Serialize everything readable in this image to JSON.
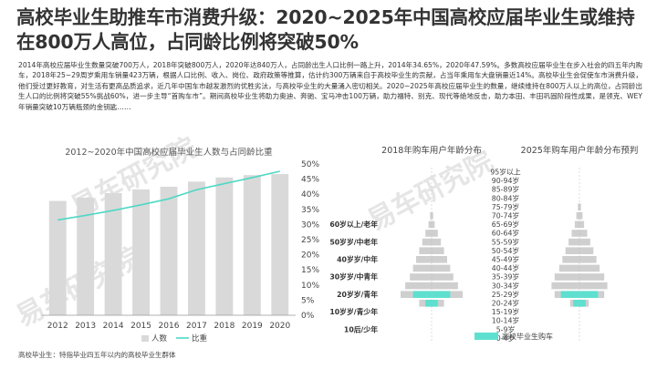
{
  "header": {
    "headline": "高校毕业生助推车市消费升级：2020~2025年中国高校应届毕业生或维持在800万人高位，占同龄比例将突破50%"
  },
  "body_text": "2014年高校应届毕业生数量突破700万人，2018年突破800万人，2020年达840万人，占同龄出生人口比例一路上升，2014年34.65%，2020年47.59%。多数高校应届毕业生在步入社会的四五年内购车，2018年25~29周岁乘用车销量423万辆，根据人口比例、收入、岗位、政府政策等推算，估计约300万辆来自于高校毕业生的贡献，占当年乘用车大盘销量近14%。高校毕业生会促使车市消费升级，他们受过更好教育，对生活有更高品质追求，近几年中国车市越发激烈的优胜劣汰，与高校毕业生的大量涌入密切相关。2020~2025年高校应届毕业生的数量，继续维持在800万人以上的高位，占同龄出生人口的比例将突破55%挑战60%，进一步主导“首购车市”。期间高校毕业生将助力奥迪、奔驰、宝马冲击100万辆，助力福特、别克、现代等绝地反击，助力本田、丰田巩固阶段性成果，是领克、WEY年销量突破10万辆瓶颈的金钥匙……",
  "footnote": "高校毕业生：特指毕业四五年以内的高校毕业生群体",
  "watermark": "易车研究院",
  "colors": {
    "bar": "#d9d9d9",
    "line": "#4fd8c4",
    "pyramid_gray": "#cfcfcf",
    "pyramid_highlight": "#5ee0d0",
    "text": "#333333"
  },
  "chart_data": [
    {
      "type": "bar",
      "title": "2012~2020年中国高校应届毕业生人数与占同龄比重",
      "categories": [
        "2012",
        "2013",
        "2014",
        "2015",
        "2016",
        "2017",
        "2018",
        "2019",
        "2020"
      ],
      "series": [
        {
          "name": "人数",
          "type": "bar",
          "axis": "left",
          "values": [
            680,
            699,
            727,
            749,
            765,
            795,
            820,
            834,
            840
          ]
        },
        {
          "name": "比重",
          "type": "line",
          "axis": "right",
          "values": [
            31.5,
            33.0,
            34.65,
            36.5,
            38.5,
            41.5,
            43.5,
            45.5,
            47.59
          ]
        }
      ],
      "y_left_range": [
        0,
        900
      ],
      "y_right_range": [
        0,
        50
      ],
      "y_right_ticks": [
        "0%",
        "5%",
        "10%",
        "15%",
        "20%",
        "25%",
        "30%",
        "35%",
        "40%",
        "45%",
        "50%"
      ],
      "grid": false,
      "legend": "bottom"
    },
    {
      "type": "bar",
      "subtype": "population-pyramid",
      "panels": [
        "2018年购车用户年龄分布",
        "2025年购车用户年龄分布预判"
      ],
      "age_groups": [
        "95岁以上",
        "90-94岁",
        "85-89岁",
        "80-84岁",
        "75-79岁",
        "70-74岁",
        "65-69岁",
        "60-64岁",
        "55-59岁",
        "50-54岁",
        "45-49岁",
        "40-44岁",
        "35-39岁",
        "30-34岁",
        "25-29岁",
        "20-24岁",
        "15-19岁",
        "10-14岁",
        "5-9岁",
        "0-4岁"
      ],
      "generations": [
        {
          "label": "60岁以上/老年",
          "age_group": "65-69岁"
        },
        {
          "label": "50岁岁/中老年",
          "age_group": "55-59岁"
        },
        {
          "label": "40岁岁/中年",
          "age_group": "45-49岁"
        },
        {
          "label": "30岁岁/中青年",
          "age_group": "35-39岁"
        },
        {
          "label": "20岁岁/青年",
          "age_group": "25-29岁"
        },
        {
          "label": "10岁岁/青少年",
          "age_group": "15-19岁"
        },
        {
          "label": "10后/少年",
          "age_group": "5-9岁"
        }
      ],
      "series": [
        {
          "panel": "2018年购车用户年龄分布",
          "name": "购车用户",
          "values": [
            0,
            0,
            0,
            0,
            0,
            0.5,
            1,
            2,
            3,
            4,
            5,
            6,
            7,
            8.5,
            10,
            4,
            0,
            0,
            0,
            0
          ]
        },
        {
          "panel": "2018年购车用户年龄分布",
          "name": "高校毕业生购车",
          "values": [
            0,
            0,
            0,
            0,
            0,
            0,
            0,
            0,
            0,
            0,
            0,
            0,
            0,
            0,
            6,
            2,
            0,
            0,
            0,
            0
          ]
        },
        {
          "panel": "2025年购车用户年龄分布预判",
          "name": "购车用户",
          "values": [
            0,
            0,
            0,
            0,
            0.5,
            1,
            1.5,
            2.5,
            3.5,
            4.5,
            5.5,
            6.5,
            8,
            9,
            8,
            3,
            0,
            0,
            0,
            0
          ]
        },
        {
          "panel": "2025年购车用户年龄分布预判",
          "name": "高校毕业生购车",
          "values": [
            0,
            0,
            0,
            0,
            0,
            0,
            0,
            0,
            0,
            0,
            0,
            0,
            0,
            0,
            6,
            2,
            0,
            0,
            0,
            0
          ]
        }
      ],
      "legend_label": "高校毕业生购车"
    }
  ]
}
